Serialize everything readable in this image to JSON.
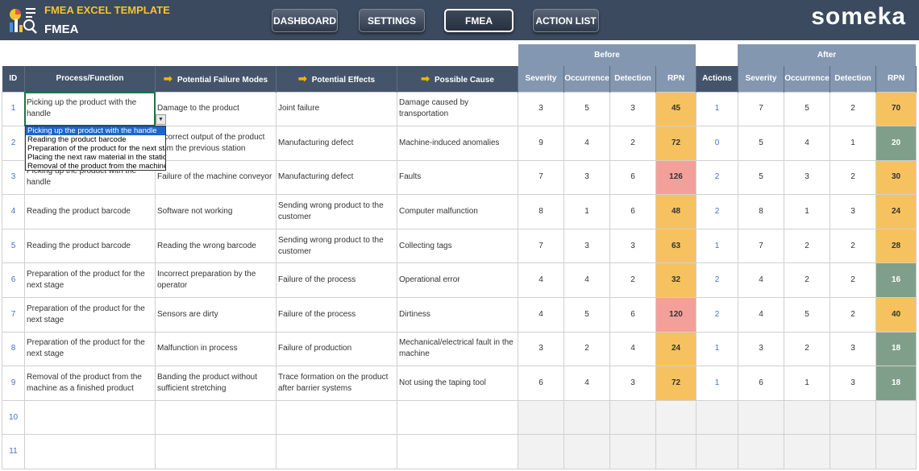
{
  "header": {
    "app_title": "FMEA EXCEL TEMPLATE",
    "app_subtitle": "FMEA",
    "brand": "someka",
    "nav": [
      {
        "label": "DASHBOARD"
      },
      {
        "label": "SETTINGS"
      },
      {
        "label": "FMEA"
      },
      {
        "label": "ACTION LIST"
      }
    ]
  },
  "groups": {
    "before": "Before",
    "after": "After"
  },
  "columns": {
    "id": "ID",
    "process": "Process/Function",
    "failure": "Potential Failure Modes",
    "effects": "Potential Effects",
    "cause": "Possible Cause",
    "severity": "Severity",
    "occurrence": "Occurrence",
    "detection": "Detection",
    "rpn": "RPN",
    "actions": "Actions",
    "severity2": "Severity",
    "occurrence2": "Occurrence",
    "detection2": "Detection",
    "rpn2": "RPN"
  },
  "rows": [
    {
      "id": "1",
      "process": "Picking up the product with the handle",
      "failure": "Damage to the product",
      "effects": "Joint failure",
      "cause": "Damage caused by transportation",
      "sev": "3",
      "occ": "5",
      "det": "3",
      "rpn": "45",
      "actions": "1",
      "sev2": "7",
      "occ2": "5",
      "det2": "2",
      "rpn2": "70"
    },
    {
      "id": "2",
      "process": "",
      "failure": "Incorrect output of the product from the previous station",
      "effects": "Manufacturing defect",
      "cause": "Machine-induced anomalies",
      "sev": "9",
      "occ": "4",
      "det": "2",
      "rpn": "72",
      "actions": "0",
      "sev2": "5",
      "occ2": "4",
      "det2": "1",
      "rpn2": "20"
    },
    {
      "id": "3",
      "process": "Picking up the product with the handle",
      "failure": "Failure of the machine conveyor",
      "effects": "Manufacturing defect",
      "cause": "Faults",
      "sev": "7",
      "occ": "3",
      "det": "6",
      "rpn": "126",
      "actions": "2",
      "sev2": "5",
      "occ2": "3",
      "det2": "2",
      "rpn2": "30"
    },
    {
      "id": "4",
      "process": "Reading the product barcode",
      "failure": "Software not working",
      "effects": "Sending wrong product to the customer",
      "cause": "Computer malfunction",
      "sev": "8",
      "occ": "1",
      "det": "6",
      "rpn": "48",
      "actions": "2",
      "sev2": "8",
      "occ2": "1",
      "det2": "3",
      "rpn2": "24"
    },
    {
      "id": "5",
      "process": "Reading the product barcode",
      "failure": "Reading the wrong barcode",
      "effects": "Sending wrong product to the customer",
      "cause": "Collecting tags",
      "sev": "7",
      "occ": "3",
      "det": "3",
      "rpn": "63",
      "actions": "1",
      "sev2": "7",
      "occ2": "2",
      "det2": "2",
      "rpn2": "28"
    },
    {
      "id": "6",
      "process": "Preparation of the product for the next stage",
      "failure": "Incorrect preparation by the operator",
      "effects": "Failure of the process",
      "cause": "Operational error",
      "sev": "4",
      "occ": "4",
      "det": "2",
      "rpn": "32",
      "actions": "2",
      "sev2": "4",
      "occ2": "2",
      "det2": "2",
      "rpn2": "16"
    },
    {
      "id": "7",
      "process": "Preparation of the product for the next stage",
      "failure": "Sensors are dirty",
      "effects": "Failure of the process",
      "cause": "Dirtiness",
      "sev": "4",
      "occ": "5",
      "det": "6",
      "rpn": "120",
      "actions": "2",
      "sev2": "4",
      "occ2": "5",
      "det2": "2",
      "rpn2": "40"
    },
    {
      "id": "8",
      "process": "Preparation of the product for the next stage",
      "failure": "Malfunction in process",
      "effects": "Failure of production",
      "cause": "Mechanical/electrical fault in the machine",
      "sev": "3",
      "occ": "2",
      "det": "4",
      "rpn": "24",
      "actions": "1",
      "sev2": "3",
      "occ2": "2",
      "det2": "3",
      "rpn2": "18"
    },
    {
      "id": "9",
      "process": "Removal of the product from the machine as a finished product",
      "failure": "Banding the product without sufficient stretching",
      "effects": "Trace formation on the product after barrier systems",
      "cause": "Not using the taping tool",
      "sev": "6",
      "occ": "4",
      "det": "3",
      "rpn": "72",
      "actions": "1",
      "sev2": "6",
      "occ2": "1",
      "det2": "3",
      "rpn2": "18"
    },
    {
      "id": "10",
      "process": "",
      "failure": "",
      "effects": "",
      "cause": "",
      "sev": "",
      "occ": "",
      "det": "",
      "rpn": "",
      "actions": "",
      "sev2": "",
      "occ2": "",
      "det2": "",
      "rpn2": ""
    },
    {
      "id": "11",
      "process": "",
      "failure": "",
      "effects": "",
      "cause": "",
      "sev": "",
      "occ": "",
      "det": "",
      "rpn": "",
      "actions": "",
      "sev2": "",
      "occ2": "",
      "det2": "",
      "rpn2": ""
    }
  ],
  "dropdown": {
    "options": [
      "Picking up the product with the handle",
      "Reading the product barcode",
      "Preparation of the product for the next stage",
      "Placing the next raw material in the station",
      "Removal of the product from the machine as a finished product"
    ],
    "selected": "Picking up the product with the handle"
  },
  "colors": {
    "header_bg": "#3b4a5e",
    "title_yellow": "#f4c430",
    "rpn_high": "#f4a09a",
    "rpn_mid": "#f6c25f",
    "rpn_low": "#7f9f8a"
  }
}
